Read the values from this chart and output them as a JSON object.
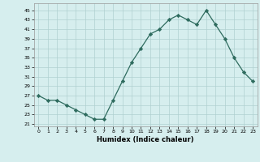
{
  "x": [
    0,
    1,
    2,
    3,
    4,
    5,
    6,
    7,
    8,
    9,
    10,
    11,
    12,
    13,
    14,
    15,
    16,
    17,
    18,
    19,
    20,
    21,
    22,
    23
  ],
  "y": [
    27,
    26,
    26,
    25,
    24,
    23,
    22,
    22,
    26,
    30,
    34,
    37,
    40,
    41,
    43,
    44,
    43,
    42,
    45,
    42,
    39,
    35,
    32,
    30
  ],
  "line_color": "#2e6b5e",
  "marker": "D",
  "marker_size": 2.2,
  "bg_color": "#d6eeee",
  "grid_color": "#b0d0d0",
  "xlabel": "Humidex (Indice chaleur)",
  "ylim": [
    20.5,
    46.5
  ],
  "yticks": [
    21,
    23,
    25,
    27,
    29,
    31,
    33,
    35,
    37,
    39,
    41,
    43,
    45
  ],
  "xticks": [
    0,
    1,
    2,
    3,
    4,
    5,
    6,
    7,
    8,
    9,
    10,
    11,
    12,
    13,
    14,
    15,
    16,
    17,
    18,
    19,
    20,
    21,
    22,
    23
  ],
  "xlim": [
    -0.5,
    23.5
  ]
}
